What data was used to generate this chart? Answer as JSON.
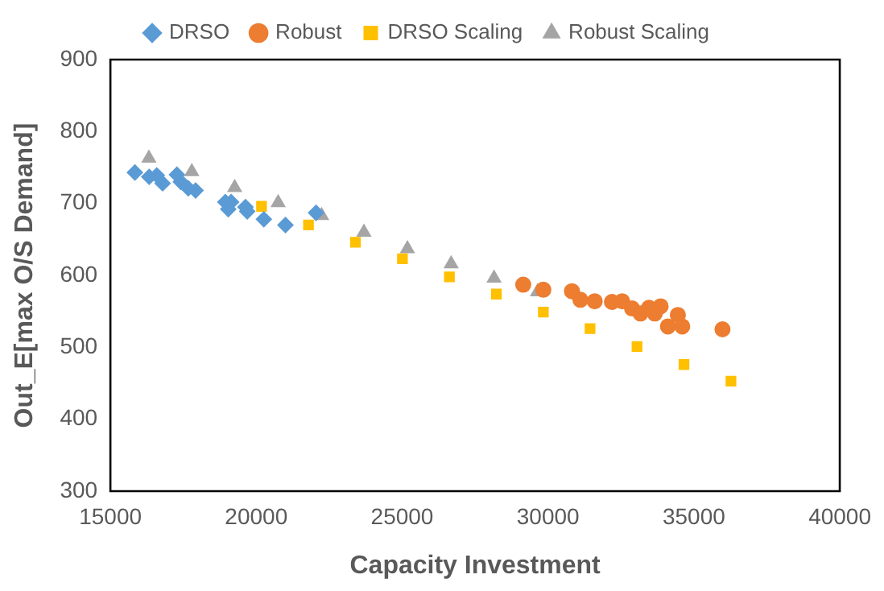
{
  "chart_data": {
    "type": "scatter",
    "xlabel": "Capacity Investment",
    "ylabel": "Out_E[max O/S Demand]",
    "xlim": [
      15000,
      40000
    ],
    "xticks": [
      15000,
      20000,
      25000,
      30000,
      35000,
      40000
    ],
    "ylim": [
      300,
      900
    ],
    "yticks": [
      300,
      400,
      500,
      600,
      700,
      800,
      900
    ],
    "grid": false,
    "legend": "top",
    "series": [
      {
        "name": "DRSO",
        "color": "#5b9bd5",
        "marker": "diamond",
        "x": [
          15840,
          16330,
          16590,
          16790,
          17280,
          17410,
          17670,
          17920,
          18940,
          19040,
          19140,
          19630,
          19690,
          20260,
          21000,
          22050
        ],
        "values": [
          743,
          737,
          739,
          728,
          740,
          730,
          721,
          718,
          702,
          692,
          702,
          695,
          689,
          678,
          670,
          687
        ]
      },
      {
        "name": "Robust",
        "color": "#ed7d31",
        "marker": "circle",
        "x": [
          29150,
          29840,
          30820,
          31110,
          31600,
          32190,
          32540,
          32880,
          33170,
          33460,
          33660,
          33860,
          34110,
          34450,
          34600,
          35980
        ],
        "values": [
          587,
          580,
          578,
          566,
          564,
          563,
          564,
          554,
          547,
          555,
          547,
          557,
          529,
          545,
          529,
          525
        ]
      },
      {
        "name": "DRSO Scaling",
        "color": "#ffc000",
        "marker": "square",
        "x": [
          20180,
          21790,
          23400,
          25010,
          26620,
          28230,
          29840,
          31440,
          33050,
          34660,
          36270
        ],
        "values": [
          696,
          670,
          646,
          623,
          598,
          574,
          549,
          526,
          501,
          476,
          453
        ]
      },
      {
        "name": "Robust Scaling",
        "color": "#a5a5a5",
        "marker": "triangle",
        "x": [
          16320,
          17790,
          19260,
          20750,
          22240,
          23690,
          25180,
          26680,
          28150,
          29640
        ],
        "values": [
          763,
          744,
          722,
          701,
          683,
          660,
          637,
          616,
          596,
          577
        ]
      }
    ]
  }
}
